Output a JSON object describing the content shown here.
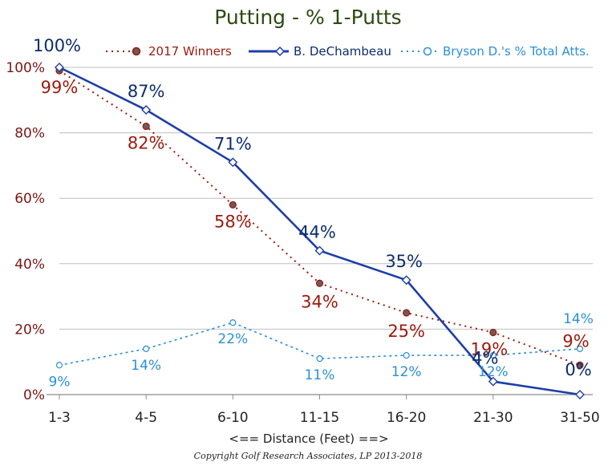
{
  "chart_data": {
    "type": "line",
    "title": "Putting - % 1-Putts",
    "xlabel": "<== Distance (Feet) ==>",
    "ylabel": "",
    "footer": "Copyright Golf Research Associates, LP 2013-2018",
    "categories": [
      "1-3",
      "4-5",
      "6-10",
      "11-15",
      "16-20",
      "21-30",
      "31-50"
    ],
    "ylim": [
      0,
      100
    ],
    "yticks": [
      "0%",
      "20%",
      "40%",
      "60%",
      "80%",
      "100%"
    ],
    "ytick_values": [
      0,
      20,
      40,
      60,
      80,
      100
    ],
    "grid": true,
    "legend_position": "top",
    "series": [
      {
        "name": "2017 Winners",
        "values": [
          99,
          82,
          58,
          34,
          25,
          19,
          9
        ],
        "labels": [
          "99%",
          "82%",
          "58%",
          "34%",
          "25%",
          "19%",
          "9%"
        ],
        "color": "#9c1a0d",
        "style": "dotted",
        "marker": "circle-filled"
      },
      {
        "name": "B. DeChambeau",
        "values": [
          100,
          87,
          71,
          44,
          35,
          4,
          0
        ],
        "labels": [
          "100%",
          "87%",
          "71%",
          "44%",
          "35%",
          "4%",
          "0%"
        ],
        "color": "#1e3ea8",
        "style": "solid",
        "marker": "diamond"
      },
      {
        "name": "Bryson D.'s % Total Atts.",
        "values": [
          9,
          14,
          22,
          11,
          12,
          12,
          14
        ],
        "labels": [
          "9%",
          "14%",
          "22%",
          "11%",
          "12%",
          "12%",
          "14%"
        ],
        "color": "#2b8fd8",
        "style": "dashed",
        "marker": "circle-open"
      }
    ]
  }
}
